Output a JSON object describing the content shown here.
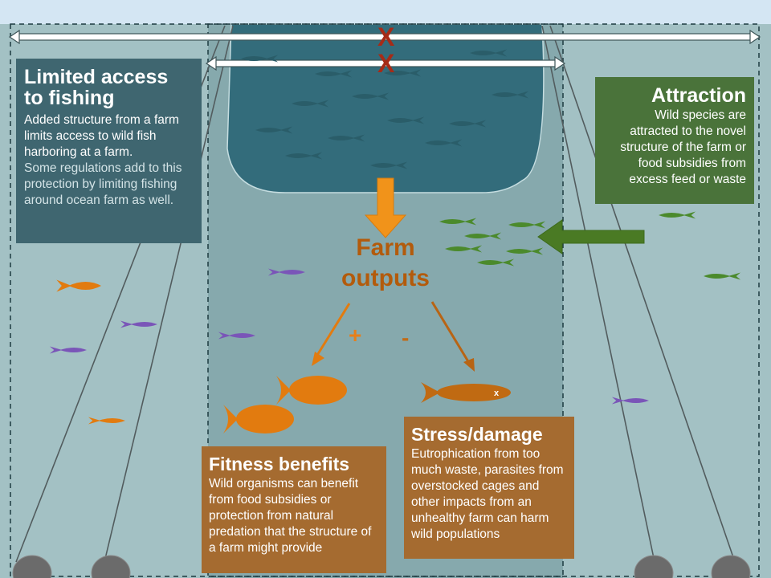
{
  "colors": {
    "water": "#a3c1c4",
    "middle_zone": "#86a9ad",
    "sky": "#d4e6f3",
    "cage": "#336c7b",
    "limited_box": "#3f6670",
    "attraction_box": "#4a733a",
    "output_box": "#a56b30",
    "farm_text": "#b35b0c",
    "arrow_orange": "#f1931a",
    "arrow_green": "#4a7a24",
    "x_mark": "#a62b17",
    "fish_dark": "#2a5d69",
    "fish_orange": "#e27b0f",
    "fish_purple": "#7a55b8",
    "fish_green": "#4b8a2c",
    "weight": "#6b6b6b"
  },
  "x_marks": {
    "top": "X",
    "second": "X"
  },
  "limited": {
    "title_line1": "Limited access",
    "title_line2": "to fishing",
    "body": "Added structure from a farm limits access to wild fish harboring at a farm.",
    "note": "Some regulations add to this protection by limiting fishing around ocean farm as well."
  },
  "attraction": {
    "title": "Attraction",
    "body": "Wild species are attracted to the novel structure of the farm or food subsidies from excess feed or waste"
  },
  "farm_outputs": {
    "line1": "Farm",
    "line2": "outputs",
    "plus": "+",
    "minus": "-"
  },
  "fitness": {
    "title": "Fitness benefits",
    "body": "Wild organisms can benefit from food subsidies or protection from natural predation that the structure of a farm might provide"
  },
  "stress": {
    "title": "Stress/damage",
    "body": "Eutrophication from too much waste, parasites from overstocked cages and other impacts from an unhealthy farm can harm wild populations",
    "dead_fish_mark": "x"
  }
}
